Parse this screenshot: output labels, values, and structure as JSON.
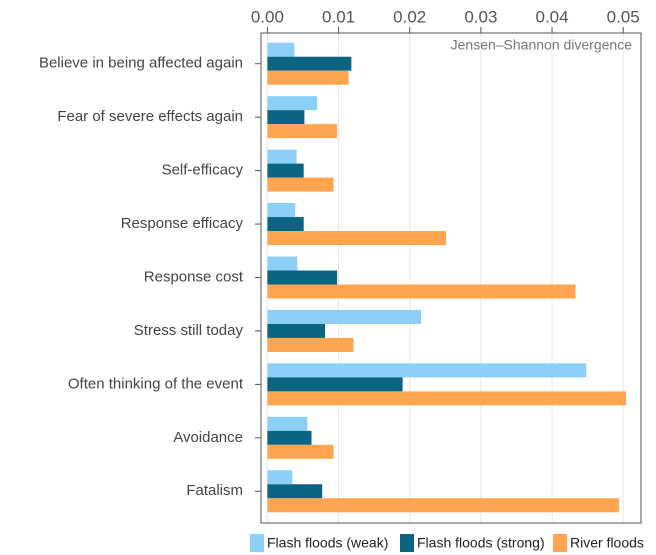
{
  "chart_data": {
    "type": "bar",
    "orientation": "horizontal",
    "annotation": "Jensen–Shannon divergence",
    "categories": [
      "Believe in being affected again",
      "Fear of severe effects again",
      "Self-efficacy",
      "Response efficacy",
      "Response cost",
      "Stress still today",
      "Often thinking of the event",
      "Avoidance",
      "Fatalism"
    ],
    "series": [
      {
        "name": "Flash floods (weak)",
        "color": "#8ccff7",
        "values": [
          0.0038,
          0.007,
          0.0041,
          0.0039,
          0.0042,
          0.0216,
          0.0448,
          0.0056,
          0.0035
        ]
      },
      {
        "name": "Flash floods (strong)",
        "color": "#0b6482",
        "values": [
          0.0118,
          0.0052,
          0.0051,
          0.0051,
          0.0098,
          0.0081,
          0.019,
          0.0062,
          0.0077
        ]
      },
      {
        "name": "River floods",
        "color": "#ffa550",
        "values": [
          0.0114,
          0.0098,
          0.0093,
          0.0251,
          0.0433,
          0.0121,
          0.0504,
          0.0093,
          0.0494
        ]
      }
    ],
    "xlim": [
      -0.0009,
      0.0525
    ],
    "xticks": [
      {
        "value": 0,
        "label": "0.00"
      },
      {
        "value": 0.01,
        "label": "0.01"
      },
      {
        "value": 0.02,
        "label": "0.02"
      },
      {
        "value": 0.03,
        "label": "0.03"
      },
      {
        "value": 0.04,
        "label": "0.04"
      },
      {
        "value": 0.05,
        "label": "0.05"
      }
    ],
    "grid": true,
    "legend": "bottom"
  }
}
